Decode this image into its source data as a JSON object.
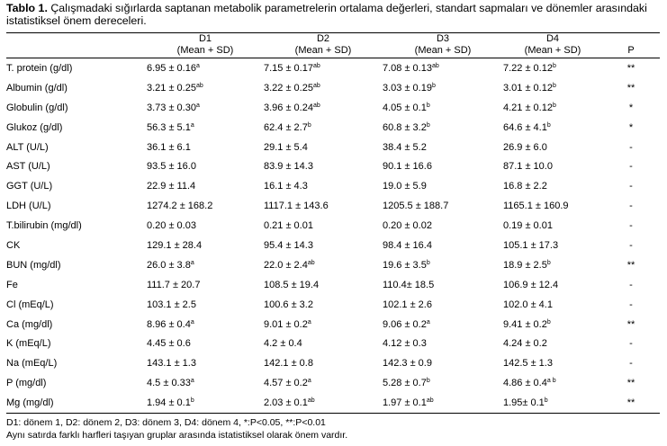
{
  "caption": {
    "label": "Tablo 1.",
    "text": " Çalışmadaki sığırlarda saptanan metabolik parametrelerin ortalama değerleri, standart sapmaları ve dönemler arasındaki istatistiksel önem dereceleri."
  },
  "header": {
    "groups": [
      "D1",
      "D2",
      "D3",
      "D4"
    ],
    "sub": "(Mean + SD)",
    "p_label": "P"
  },
  "rows": [
    {
      "param": "T. protein (g/dl)",
      "cells": [
        [
          "6.95 ± 0.16",
          "a"
        ],
        [
          "7.15 ± 0.17",
          "ab"
        ],
        [
          "7.08 ± 0.13",
          "ab"
        ],
        [
          "7.22 ± 0.12",
          "b"
        ]
      ],
      "p": "**"
    },
    {
      "param": "Albumin (g/dl)",
      "cells": [
        [
          "3.21 ± 0.25",
          "ab"
        ],
        [
          "3.22 ± 0.25",
          "ab"
        ],
        [
          "3.03 ± 0.19",
          "b"
        ],
        [
          "3.01 ± 0.12",
          "b"
        ]
      ],
      "p": "**"
    },
    {
      "param": "Globulin (g/dl)",
      "cells": [
        [
          "3.73 ± 0.30",
          "a"
        ],
        [
          "3.96 ± 0.24",
          "ab"
        ],
        [
          "4.05 ± 0.1",
          "b"
        ],
        [
          "4.21 ± 0.12",
          "b"
        ]
      ],
      "p": "*"
    },
    {
      "param": "Glukoz (g/dl)",
      "cells": [
        [
          "56.3 ± 5.1",
          "a"
        ],
        [
          "62.4 ± 2.7",
          "b"
        ],
        [
          "60.8 ± 3.2",
          "b"
        ],
        [
          "64.6 ± 4.1",
          "b"
        ]
      ],
      "p": "*"
    },
    {
      "param": "ALT (U/L)",
      "cells": [
        [
          "36.1 ± 6.1",
          ""
        ],
        [
          "29.1 ± 5.4",
          ""
        ],
        [
          "38.4 ± 5.2",
          ""
        ],
        [
          "26.9 ± 6.0",
          ""
        ]
      ],
      "p": "-"
    },
    {
      "param": "AST (U/L)",
      "cells": [
        [
          "93.5 ± 16.0",
          ""
        ],
        [
          "83.9 ± 14.3",
          ""
        ],
        [
          "90.1 ± 16.6",
          ""
        ],
        [
          "87.1 ± 10.0",
          ""
        ]
      ],
      "p": "-"
    },
    {
      "param": "GGT (U/L)",
      "cells": [
        [
          "22.9 ± 11.4",
          ""
        ],
        [
          "16.1 ± 4.3",
          ""
        ],
        [
          "19.0 ± 5.9",
          ""
        ],
        [
          "16.8 ± 2.2",
          ""
        ]
      ],
      "p": "-"
    },
    {
      "param": "LDH (U/L)",
      "cells": [
        [
          "1274.2 ± 168.2",
          ""
        ],
        [
          "1117.1 ± 143.6",
          ""
        ],
        [
          "1205.5 ± 188.7",
          ""
        ],
        [
          "1165.1 ± 160.9",
          ""
        ]
      ],
      "p": "-"
    },
    {
      "param": "T.bilirubin (mg/dl)",
      "cells": [
        [
          "0.20 ± 0.03",
          ""
        ],
        [
          "0.21 ± 0.01",
          ""
        ],
        [
          "0.20 ± 0.02",
          ""
        ],
        [
          "0.19 ± 0.01",
          ""
        ]
      ],
      "p": "-"
    },
    {
      "param": "CK",
      "cells": [
        [
          "129.1 ± 28.4",
          ""
        ],
        [
          "95.4 ± 14.3",
          ""
        ],
        [
          "98.4 ± 16.4",
          ""
        ],
        [
          "105.1 ± 17.3",
          ""
        ]
      ],
      "p": "-"
    },
    {
      "param": "BUN (mg/dl)",
      "cells": [
        [
          "26.0 ± 3.8",
          "a"
        ],
        [
          "22.0 ± 2.4",
          "ab"
        ],
        [
          "19.6 ± 3.5",
          "b"
        ],
        [
          "18.9 ± 2.5",
          "b"
        ]
      ],
      "p": "**"
    },
    {
      "param": "Fe",
      "cells": [
        [
          "111.7 ± 20.7",
          ""
        ],
        [
          "108.5 ± 19.4",
          ""
        ],
        [
          "110.4± 18.5",
          ""
        ],
        [
          "106.9 ± 12.4",
          ""
        ]
      ],
      "p": "-"
    },
    {
      "param": "Cl (mEq/L)",
      "cells": [
        [
          "103.1 ± 2.5",
          ""
        ],
        [
          "100.6 ± 3.2",
          ""
        ],
        [
          "102.1 ± 2.6",
          ""
        ],
        [
          "102.0 ± 4.1",
          ""
        ]
      ],
      "p": "-"
    },
    {
      "param": "Ca (mg/dl)",
      "cells": [
        [
          "8.96 ± 0.4",
          "a"
        ],
        [
          "9.01 ± 0.2",
          "a"
        ],
        [
          "9.06 ± 0.2",
          "a"
        ],
        [
          "9.41 ± 0.2",
          "b"
        ]
      ],
      "p": "**"
    },
    {
      "param": "K (mEq/L)",
      "cells": [
        [
          "4.45 ± 0.6",
          ""
        ],
        [
          "4.2 ± 0.4",
          ""
        ],
        [
          "4.12 ± 0.3",
          ""
        ],
        [
          "4.24 ± 0.2",
          ""
        ]
      ],
      "p": "-"
    },
    {
      "param": "Na (mEq/L)",
      "cells": [
        [
          "143.1 ± 1.3",
          ""
        ],
        [
          "142.1 ± 0.8",
          ""
        ],
        [
          "142.3 ± 0.9",
          ""
        ],
        [
          "142.5 ± 1.3",
          ""
        ]
      ],
      "p": "-"
    },
    {
      "param": "P (mg/dl)",
      "cells": [
        [
          "4.5 ± 0.33",
          "a"
        ],
        [
          "4.57 ± 0.2",
          "a"
        ],
        [
          "5.28 ± 0.7",
          "b"
        ],
        [
          "4.86 ± 0.4",
          "a b"
        ]
      ],
      "p": "**"
    },
    {
      "param": "Mg (mg/dl)",
      "cells": [
        [
          "1.94 ± 0.1",
          "b"
        ],
        [
          "2.03 ± 0.1",
          "ab"
        ],
        [
          "1.97 ± 0.1",
          "ab"
        ],
        [
          "1.95± 0.1",
          "b"
        ]
      ],
      "p": "**"
    }
  ],
  "footnotes": [
    "D1: dönem 1, D2: dönem 2, D3: dönem 3, D4: dönem 4, *:P<0.05, **:P<0.01",
    "Aynı satırda farklı harfleri taşıyan gruplar arasında istatistiksel olarak önem vardır."
  ]
}
